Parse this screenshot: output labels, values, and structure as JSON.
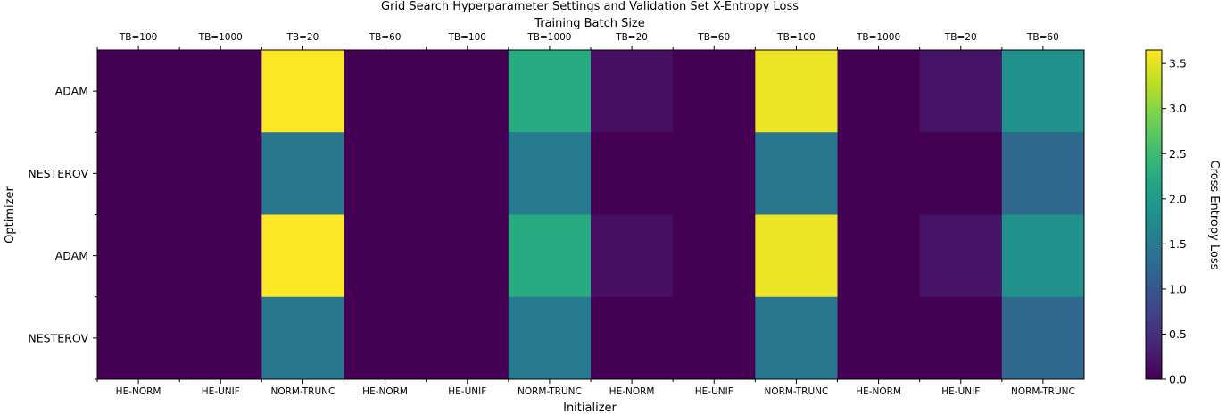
{
  "chart_data": {
    "type": "heatmap",
    "title": "Grid Search Hyperparameter Settings and Validation Set X-Entropy Loss",
    "top_xlabel": "Training Batch Size",
    "xlabel": "Initializer",
    "ylabel": "Optimizer",
    "top_tick_labels": [
      "TB=100",
      "TB=1000",
      "TB=20",
      "TB=60",
      "TB=100",
      "TB=1000",
      "TB=20",
      "TB=60",
      "TB=100",
      "TB=1000",
      "TB=20",
      "TB=60"
    ],
    "x_tick_labels": [
      "HE-NORM",
      "HE-UNIF",
      "NORM-TRUNC",
      "HE-NORM",
      "HE-UNIF",
      "NORM-TRUNC",
      "HE-NORM",
      "HE-UNIF",
      "NORM-TRUNC",
      "HE-NORM",
      "HE-UNIF",
      "NORM-TRUNC"
    ],
    "y_tick_labels": [
      "ADAM",
      "NESTEROV",
      "ADAM",
      "NESTEROV"
    ],
    "values": [
      [
        0.0,
        0.0,
        3.65,
        0.0,
        0.0,
        2.25,
        0.15,
        0.0,
        3.55,
        0.0,
        0.2,
        1.85
      ],
      [
        0.0,
        0.0,
        1.45,
        0.0,
        0.0,
        1.5,
        0.0,
        0.0,
        1.45,
        0.0,
        0.0,
        1.25
      ],
      [
        0.0,
        0.0,
        3.65,
        0.0,
        0.0,
        2.25,
        0.15,
        0.0,
        3.55,
        0.0,
        0.2,
        1.85
      ],
      [
        0.0,
        0.0,
        1.45,
        0.0,
        0.0,
        1.5,
        0.0,
        0.0,
        1.45,
        0.0,
        0.0,
        1.25
      ]
    ],
    "colormap": "viridis",
    "vmin": 0.0,
    "vmax": 3.65,
    "colorbar": {
      "label": "Cross Entropy Loss",
      "ticks": [
        0.0,
        0.5,
        1.0,
        1.5,
        2.0,
        2.5,
        3.0,
        3.5
      ],
      "tick_labels": [
        "0.0",
        "0.5",
        "1.0",
        "1.5",
        "2.0",
        "2.5",
        "3.0",
        "3.5"
      ]
    }
  }
}
